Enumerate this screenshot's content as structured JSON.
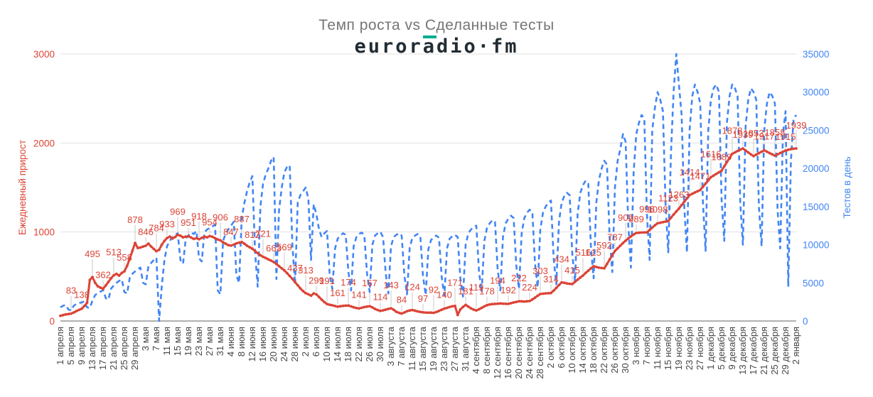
{
  "header": {
    "title": "Темп роста vs Сделанные тесты",
    "logo": {
      "pre": "euror",
      "accent": "a",
      "post": "dio·fm"
    }
  },
  "colors": {
    "red_series": "#db4437",
    "blue_series": "#4285f4",
    "title_gray": "#757575",
    "logo_dark": "#222c33",
    "logo_teal": "#00ab8e",
    "gridline": "#e0e0e0",
    "baseline": "#616161",
    "x_label_text": "#444444",
    "annotation_stem": "#c9c9c9"
  },
  "chart_data": {
    "type": "line",
    "title": "Темп роста vs Сделанные тесты",
    "x_start_date": "1 апреля",
    "x_end_date": "2 января",
    "tick_interval_days": 4,
    "annotations": {
      "series": "Ежедневный прирост",
      "start_day": 4,
      "every_days": 4
    },
    "x_tick_labels": [
      "1 апреля",
      "5 апреля",
      "9 апреля",
      "13 апреля",
      "17 апреля",
      "21 апреля",
      "25 апреля",
      "29 апреля",
      "3 мая",
      "7 мая",
      "11 мая",
      "15 мая",
      "19 мая",
      "23 мая",
      "27 мая",
      "31 мая",
      "4 июня",
      "8 июня",
      "12 июня",
      "16 июня",
      "20 июня",
      "24 июня",
      "28 июня",
      "2 июля",
      "6 июля",
      "10 июля",
      "14 июля",
      "18 июля",
      "22 июля",
      "26 июля",
      "30 июля",
      "3 августа",
      "7 августа",
      "11 августа",
      "15 августа",
      "19 августа",
      "23 августа",
      "27 августа",
      "31 августа",
      "4 сентября",
      "8 сентября",
      "12 сентября",
      "16 сентября",
      "20 сентября",
      "24 сентября",
      "28 сентября",
      "2 октября",
      "6 октября",
      "10 октября",
      "14 октября",
      "18 октября",
      "22 октября",
      "26 октября",
      "30 октября",
      "3 ноября",
      "7 ноября",
      "11 ноября",
      "15 ноября",
      "19 ноября",
      "23 ноября",
      "27 ноября",
      "1 декабря",
      "5 декабря",
      "9 декабря",
      "13 декабря",
      "17 декабря",
      "21 декабря",
      "25 декабря",
      "29 декабря",
      "2 января"
    ],
    "left_axis": {
      "label": "Ежедневный прирост",
      "ticks": [
        0,
        1000,
        2000,
        3000
      ],
      "max": 3000,
      "color": "#db4437"
    },
    "right_axis": {
      "label": "Тестов в день",
      "ticks": [
        0,
        5000,
        10000,
        15000,
        20000,
        25000,
        30000,
        35000
      ],
      "max": 35000,
      "color": "#4285f4"
    },
    "series": [
      {
        "name": "Ежедневный прирост",
        "axis": "left",
        "color": "#db4437",
        "style": "solid",
        "values": [
          58,
          66,
          74,
          78,
          83,
          96,
          112,
          125,
          138,
          170,
          205,
          460,
          495,
          430,
          390,
          375,
          362,
          400,
          440,
          480,
          513,
          530,
          510,
          540,
          558,
          620,
          700,
          790,
          878,
          820,
          826,
          836,
          846,
          870,
          838,
          810,
          784,
          800,
          856,
          900,
          933,
          948,
          926,
          944,
          969,
          958,
          940,
          948,
          951,
          938,
          922,
          930,
          918,
          934,
          948,
          940,
          954,
          946,
          930,
          916,
          906,
          884,
          868,
          852,
          847,
          858,
          872,
          880,
          887,
          868,
          846,
          828,
          812,
          786,
          762,
          740,
          721,
          708,
          692,
          678,
          663,
          640,
          616,
          592,
          569,
          538,
          506,
          472,
          437,
          402,
          366,
          336,
          313,
          300,
          285,
          310,
          299,
          270,
          240,
          212,
          191,
          183,
          176,
          168,
          161,
          166,
          170,
          172,
          174,
          164,
          154,
          146,
          141,
          149,
          156,
          162,
          167,
          152,
          136,
          123,
          114,
          120,
          128,
          136,
          143,
          126,
          104,
          92,
          84,
          96,
          110,
          118,
          124,
          116,
          108,
          102,
          97,
          95,
          93,
          94,
          92,
          101,
          113,
          127,
          140,
          148,
          157,
          165,
          171,
          68,
          130,
          158,
          181,
          162,
          142,
          128,
          119,
          132,
          148,
          164,
          178,
          186,
          190,
          192,
          194,
          197,
          195,
          193,
          192,
          200,
          208,
          215,
          222,
          221,
          219,
          222,
          224,
          242,
          262,
          284,
          303,
          307,
          310,
          312,
          314,
          342,
          372,
          404,
          434,
          429,
          422,
          418,
          415,
          440,
          464,
          488,
          511,
          540,
          566,
          592,
          615,
          607,
          599,
          595,
          592,
          640,
          690,
          740,
          787,
          816,
          846,
          876,
          902,
          928,
          950,
          972,
          989,
          992,
          994,
          995,
          996,
          1022,
          1050,
          1076,
          1098,
          1104,
          1111,
          1117,
          1123,
          1160,
          1196,
          1230,
          1263,
          1302,
          1340,
          1378,
          1414,
          1429,
          1444,
          1458,
          1471,
          1508,
          1544,
          1580,
          1616,
          1634,
          1652,
          1671,
          1689,
          1738,
          1786,
          1833,
          1878,
          1894,
          1910,
          1925,
          1939,
          1916,
          1894,
          1872,
          1853,
          1870,
          1886,
          1902,
          1917,
          1902,
          1887,
          1872,
          1858,
          1873,
          1887,
          1901,
          1915,
          1924,
          1932,
          1936,
          1939
        ]
      },
      {
        "name": "Тестов в день",
        "axis": "right",
        "color": "#4285f4",
        "style": "dashed",
        "values": [
          1800,
          2000,
          2100,
          1500,
          1400,
          2000,
          2250,
          2350,
          2450,
          2550,
          1800,
          1700,
          2650,
          3400,
          3650,
          3850,
          4050,
          3000,
          2800,
          4250,
          4650,
          5000,
          5250,
          5450,
          3800,
          3600,
          5650,
          6200,
          6500,
          6800,
          7000,
          5000,
          4800,
          7200,
          7600,
          8000,
          8300,
          0,
          4500,
          8000,
          9800,
          10500,
          11000,
          11300,
          11500,
          8000,
          7500,
          10800,
          11200,
          11600,
          11400,
          11800,
          8200,
          7800,
          11600,
          12000,
          12200,
          12400,
          12600,
          4000,
          3500,
          10500,
          11500,
          12000,
          12500,
          13000,
          6000,
          5000,
          13500,
          15500,
          17000,
          18200,
          19000,
          9000,
          4500,
          15000,
          18000,
          19200,
          20000,
          21000,
          21500,
          5500,
          14500,
          17500,
          19500,
          20200,
          20400,
          10000,
          4800,
          15500,
          16500,
          17000,
          17500,
          16000,
          8000,
          15300,
          14000,
          12000,
          11000,
          11500,
          11800,
          6000,
          4200,
          9500,
          10800,
          11200,
          11500,
          11300,
          6500,
          4000,
          9800,
          11000,
          11400,
          11600,
          11200,
          6200,
          3800,
          10000,
          11200,
          11500,
          11700,
          11000,
          6300,
          3600,
          9800,
          11000,
          11300,
          11500,
          11200,
          6000,
          3500,
          9600,
          10900,
          11200,
          11400,
          11100,
          5900,
          3400,
          9400,
          10600,
          11000,
          11200,
          10900,
          5800,
          3300,
          9500,
          10800,
          11100,
          11300,
          11000,
          5700,
          3200,
          10000,
          11500,
          12000,
          12300,
          12500,
          6500,
          3800,
          10500,
          12200,
          12800,
          13200,
          13000,
          6800,
          4000,
          11000,
          12800,
          13400,
          13800,
          13500,
          7200,
          4200,
          11500,
          13500,
          14200,
          14600,
          14300,
          7600,
          4400,
          12000,
          14200,
          15000,
          15500,
          15800,
          8200,
          4800,
          13000,
          15500,
          16400,
          16800,
          16500,
          8800,
          5200,
          14000,
          16800,
          17800,
          18400,
          18000,
          9600,
          5600,
          15500,
          18500,
          20000,
          21000,
          20500,
          11000,
          6400,
          17500,
          21000,
          22500,
          24500,
          23500,
          12500,
          7000,
          19500,
          24500,
          26000,
          27000,
          26500,
          14000,
          8000,
          25000,
          28000,
          30000,
          29000,
          27500,
          15000,
          9000,
          22000,
          30000,
          35000,
          31000,
          27000,
          15000,
          9000,
          25000,
          29500,
          31000,
          30000,
          28500,
          15500,
          9200,
          25000,
          29000,
          30500,
          31000,
          30000,
          16000,
          10500,
          26000,
          29500,
          31000,
          30500,
          29500,
          15500,
          10000,
          25500,
          29000,
          30500,
          30000,
          29000,
          15000,
          9800,
          25000,
          28500,
          30000,
          29500,
          28500,
          14500,
          9500,
          24500,
          27500,
          4500,
          21000,
          26500,
          27000
        ]
      }
    ]
  }
}
